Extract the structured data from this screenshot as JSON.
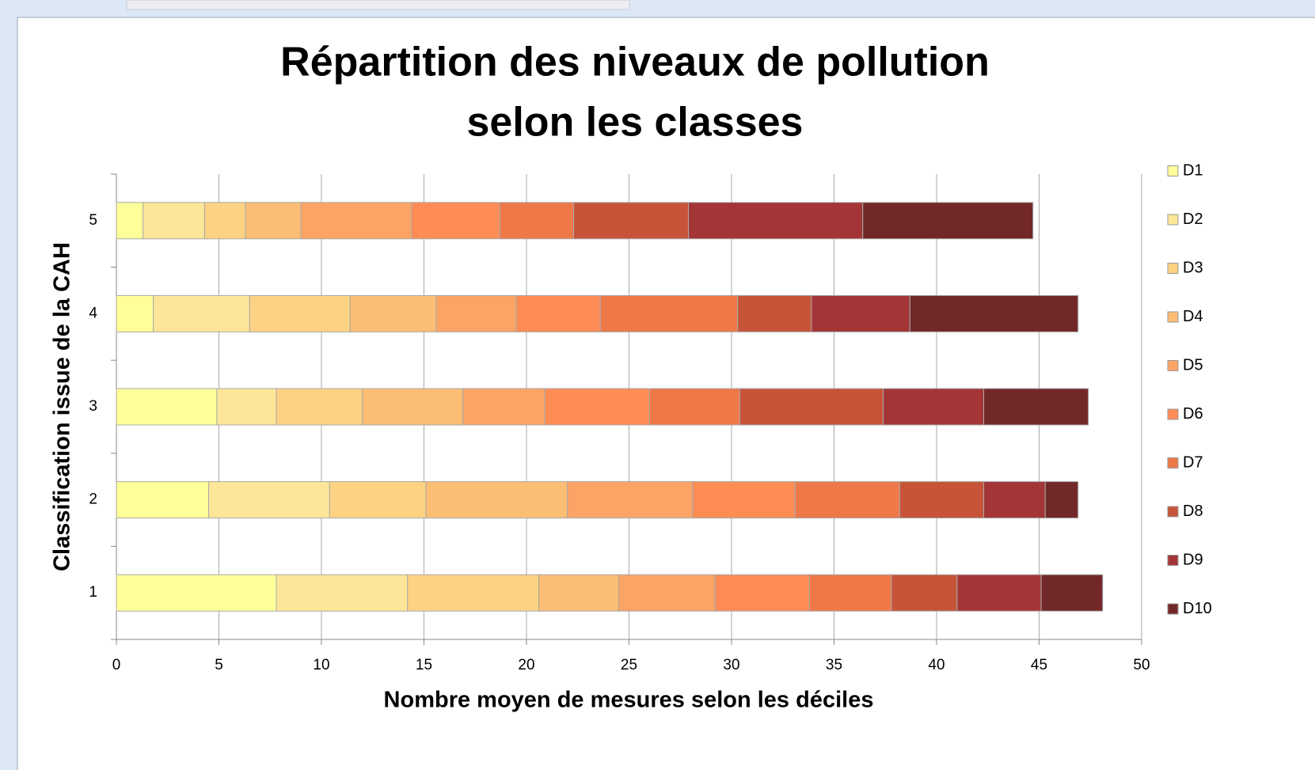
{
  "chart_data": {
    "type": "stacked-bar-horizontal",
    "title": [
      "Répartition des niveaux de pollution",
      "selon les classes"
    ],
    "x_label": "Nombre moyen de mesures selon les déciles",
    "y_label": "Classification issue de la CAH",
    "categories": [
      "1",
      "2",
      "3",
      "4",
      "5"
    ],
    "series": [
      {
        "name": "D1",
        "color": "#ffff99",
        "values": [
          7.8,
          4.5,
          4.9,
          1.8,
          1.3
        ]
      },
      {
        "name": "D2",
        "color": "#fde697",
        "values": [
          6.4,
          5.9,
          2.9,
          4.7,
          3.0
        ]
      },
      {
        "name": "D3",
        "color": "#fdd283",
        "values": [
          6.4,
          4.7,
          4.2,
          4.9,
          2.0
        ]
      },
      {
        "name": "D4",
        "color": "#fcbd74",
        "values": [
          3.9,
          6.9,
          4.9,
          4.2,
          2.7
        ]
      },
      {
        "name": "D5",
        "color": "#fca465",
        "values": [
          4.7,
          6.1,
          4.0,
          3.9,
          5.4
        ]
      },
      {
        "name": "D6",
        "color": "#fd8c55",
        "values": [
          4.6,
          5.0,
          5.1,
          4.1,
          4.3
        ]
      },
      {
        "name": "D7",
        "color": "#ef7849",
        "values": [
          4.0,
          5.1,
          4.4,
          6.7,
          3.6
        ]
      },
      {
        "name": "D8",
        "color": "#c75438",
        "values": [
          3.2,
          4.1,
          7.0,
          3.6,
          5.6
        ]
      },
      {
        "name": "D9",
        "color": "#a33537",
        "values": [
          4.1,
          3.0,
          4.9,
          4.8,
          8.5
        ]
      },
      {
        "name": "D10",
        "color": "#722828",
        "values": [
          3.0,
          1.6,
          5.1,
          8.2,
          8.3
        ]
      }
    ],
    "xlim": [
      0,
      50
    ],
    "xticks": [
      0,
      5,
      10,
      15,
      20,
      25,
      30,
      35,
      40,
      45,
      50
    ],
    "grid": true,
    "legend": "right"
  }
}
